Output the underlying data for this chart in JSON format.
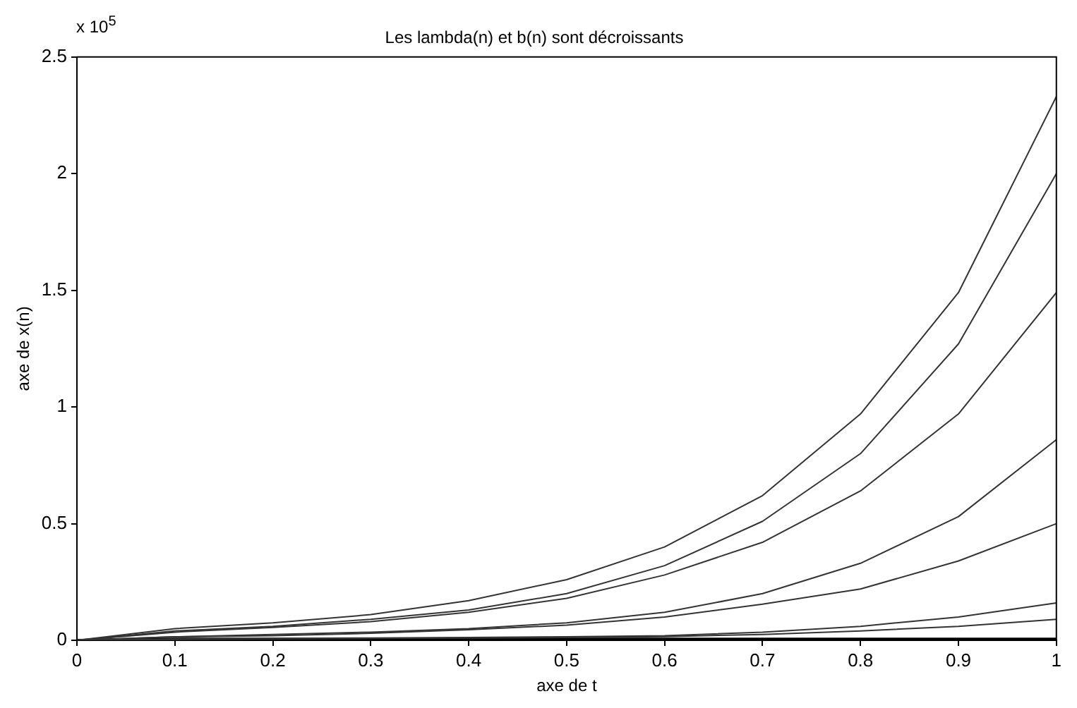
{
  "chart_data": {
    "type": "line",
    "title": "Les lambda(n) et b(n) sont décroissants",
    "xlabel": "axe de t",
    "ylabel": "axe de x(n)",
    "annotations": [
      "x 10$^{5}$"
    ],
    "x": [
      0,
      0.1,
      0.2,
      0.3,
      0.4,
      0.5,
      0.6,
      0.7,
      0.8,
      0.9,
      1
    ],
    "series": [
      {
        "color": "#333333",
        "values": [
          0,
          0.05,
          0.075,
          0.11,
          0.17,
          0.26,
          0.4,
          0.62,
          0.97,
          1.49,
          2.33
        ]
      },
      {
        "color": "#333333",
        "values": [
          0,
          0.04,
          0.06,
          0.09,
          0.13,
          0.2,
          0.32,
          0.51,
          0.8,
          1.27,
          2.0
        ]
      },
      {
        "color": "#333333",
        "values": [
          0,
          0.035,
          0.055,
          0.08,
          0.12,
          0.18,
          0.28,
          0.42,
          0.64,
          0.97,
          1.49
        ]
      },
      {
        "color": "#333333",
        "values": [
          0,
          0.015,
          0.025,
          0.035,
          0.05,
          0.075,
          0.12,
          0.2,
          0.33,
          0.53,
          0.86
        ]
      },
      {
        "color": "#333333",
        "values": [
          0,
          0.015,
          0.02,
          0.03,
          0.045,
          0.065,
          0.1,
          0.155,
          0.22,
          0.34,
          0.5
        ]
      },
      {
        "color": "#333333",
        "values": [
          0,
          0.005,
          0.008,
          0.01,
          0.012,
          0.015,
          0.02,
          0.035,
          0.06,
          0.1,
          0.16
        ]
      },
      {
        "color": "#333333",
        "values": [
          0,
          0.004,
          0.006,
          0.008,
          0.01,
          0.012,
          0.016,
          0.025,
          0.04,
          0.06,
          0.09
        ]
      },
      {
        "color": "#000000",
        "values": [
          0,
          0.005,
          0.005,
          0.005,
          0.005,
          0.005,
          0.005,
          0.005,
          0.005,
          0.005,
          0.005
        ]
      }
    ],
    "xlim": [
      0,
      1
    ],
    "xticks": [
      0,
      0.1,
      0.2,
      0.3,
      0.4,
      0.5,
      0.6,
      0.7,
      0.8,
      0.9,
      1
    ],
    "ylim": [
      0,
      2.5
    ],
    "yticks": [
      0,
      0.5,
      1,
      1.5,
      2,
      2.5
    ],
    "grid": false,
    "legend": false,
    "marker": "none",
    "line_style": "solid"
  }
}
